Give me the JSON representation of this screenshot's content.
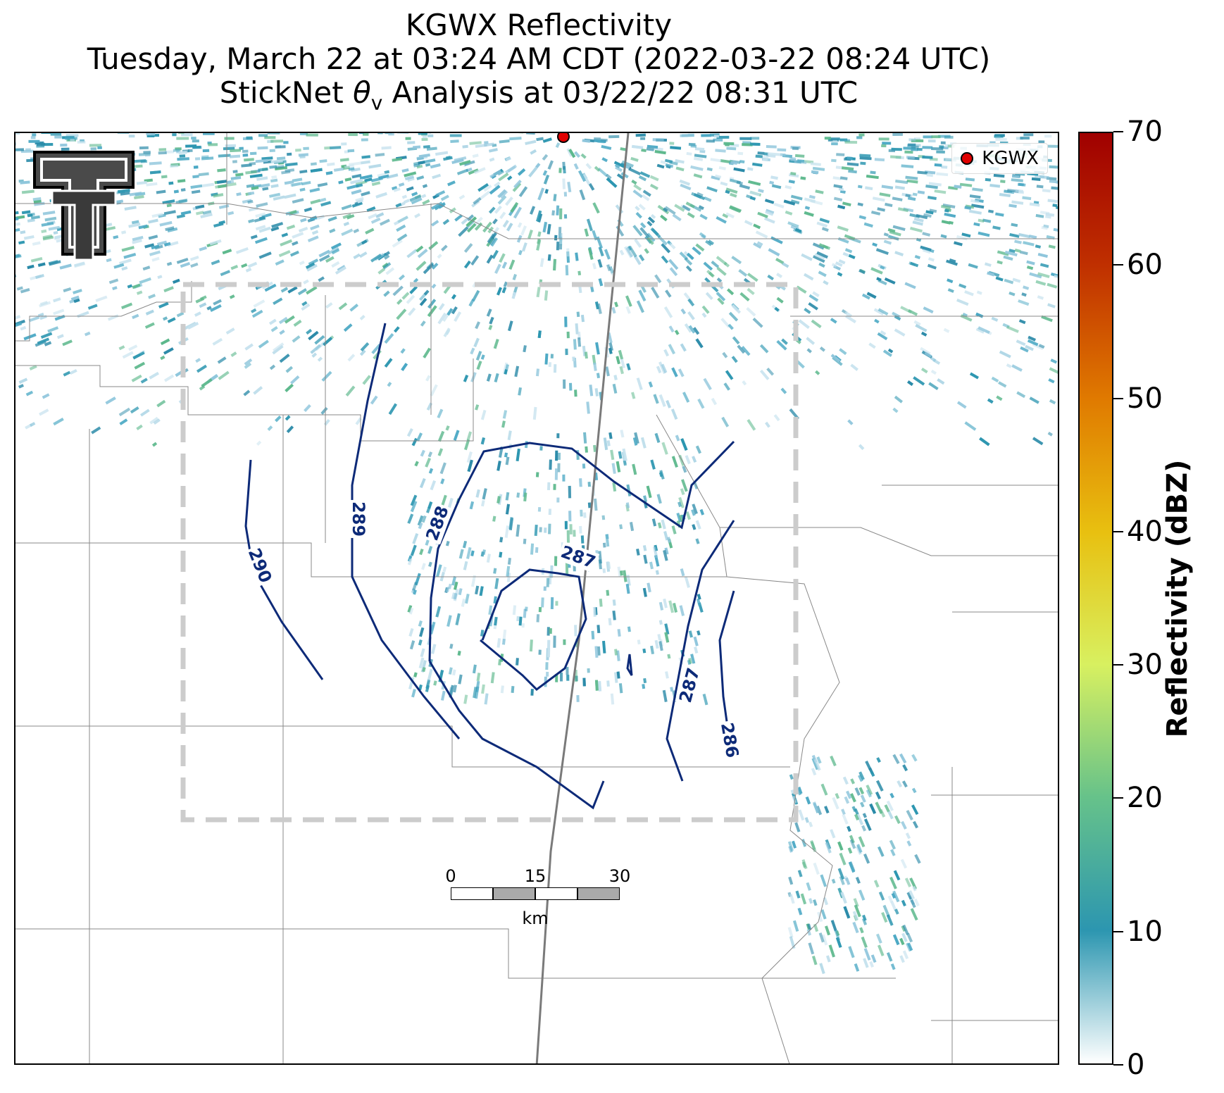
{
  "title": {
    "line1": "KGWX Reflectivity",
    "line2": "Tuesday, March 22 at 03:24 AM CDT (2022-03-22 08:24 UTC)",
    "line3_prefix": "StickNet ",
    "line3_symbol": "θ",
    "line3_subscript": "v",
    "line3_suffix": " Analysis at 03/22/22 08:31 UTC"
  },
  "legend": {
    "label": "KGWX",
    "marker_color": "#e00000"
  },
  "logo": {
    "name": "Texas Tech Double T"
  },
  "scalebar": {
    "ticks": [
      "0",
      "15",
      "30"
    ],
    "unit": "km"
  },
  "colorbar": {
    "title": "Reflectivity (dBZ)",
    "ticks": [
      "0",
      "10",
      "20",
      "30",
      "40",
      "50",
      "60",
      "70"
    ],
    "min": 0,
    "max": 70,
    "colors": [
      "#ffffff",
      "#2c96b0",
      "#66c28a",
      "#d8f060",
      "#e8c010",
      "#e07a00",
      "#c03000",
      "#a00000"
    ]
  },
  "contours": {
    "field": "StickNet θv",
    "color": "#0d2a78",
    "labels": [
      "290",
      "289",
      "288",
      "287",
      "287",
      "286"
    ]
  },
  "analysis_box": {
    "style": "dashed",
    "color": "#cccccc"
  }
}
